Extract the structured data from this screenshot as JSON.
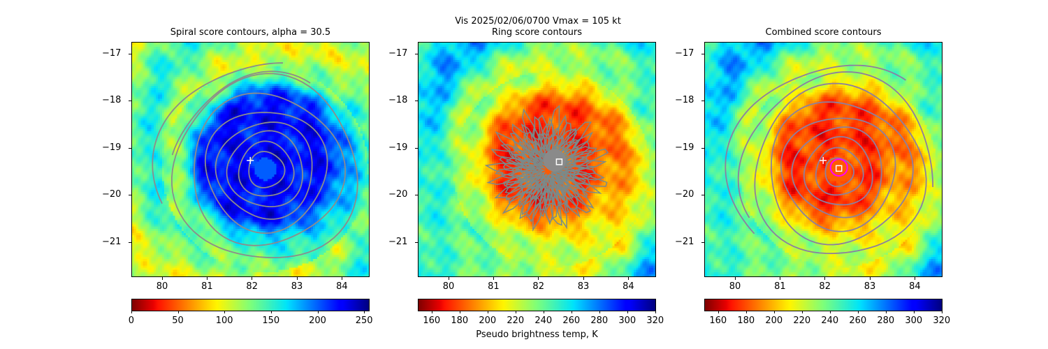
{
  "suptitle": "Vis  2025/02/06/0700    Vmax = 105 kt",
  "colorbar_label": "Pseudo brightness temp, K",
  "chart_data": [
    {
      "type": "heatmap",
      "title": "Spiral score contours, alpha = 30.5",
      "xlim": [
        79.32,
        84.62
      ],
      "ylim": [
        -21.74,
        -16.75
      ],
      "xticks": [
        "80",
        "81",
        "82",
        "83",
        "84"
      ],
      "yticks": [
        "−17",
        "−18",
        "−19",
        "−20",
        "−21"
      ],
      "colorbar": {
        "range": [
          0,
          255
        ],
        "ticks": [
          "0",
          "50",
          "100",
          "150",
          "200",
          "250"
        ],
        "tick_values": [
          0,
          50,
          100,
          150,
          200,
          250
        ]
      },
      "markers": [
        {
          "type": "plus",
          "x": 81.95,
          "y": -19.25,
          "color": "#ffffff"
        }
      ]
    },
    {
      "type": "heatmap",
      "title": "Ring score contours",
      "xlim": [
        79.32,
        84.62
      ],
      "ylim": [
        -21.74,
        -16.75
      ],
      "xticks": [
        "80",
        "81",
        "82",
        "83",
        "84"
      ],
      "yticks": [
        "−17",
        "−18",
        "−19",
        "−20",
        "−21"
      ],
      "colorbar": {
        "range": [
          150,
          320
        ],
        "ticks": [
          "160",
          "180",
          "200",
          "220",
          "240",
          "260",
          "280",
          "300",
          "320"
        ],
        "tick_values": [
          160,
          180,
          200,
          220,
          240,
          260,
          280,
          300,
          320
        ]
      },
      "markers": [
        {
          "type": "square",
          "x": 82.45,
          "y": -19.28,
          "color": "#ffffff"
        }
      ]
    },
    {
      "type": "heatmap",
      "title": "Combined score contours",
      "xlim": [
        79.32,
        84.62
      ],
      "ylim": [
        -21.74,
        -16.75
      ],
      "xticks": [
        "80",
        "81",
        "82",
        "83",
        "84"
      ],
      "yticks": [
        "−17",
        "−18",
        "−19",
        "−20",
        "−21"
      ],
      "colorbar": {
        "range": [
          150,
          320
        ],
        "ticks": [
          "160",
          "180",
          "200",
          "220",
          "240",
          "260",
          "280",
          "300",
          "320"
        ],
        "tick_values": [
          160,
          180,
          200,
          220,
          240,
          260,
          280,
          300,
          320
        ]
      },
      "markers": [
        {
          "type": "plus",
          "x": 81.95,
          "y": -19.25,
          "color": "#ffffff"
        },
        {
          "type": "circle",
          "x": 82.3,
          "y": -19.4,
          "color": "#ff00ff"
        },
        {
          "type": "square",
          "x": 82.3,
          "y": -19.42,
          "color": "#ffffff"
        }
      ]
    }
  ]
}
